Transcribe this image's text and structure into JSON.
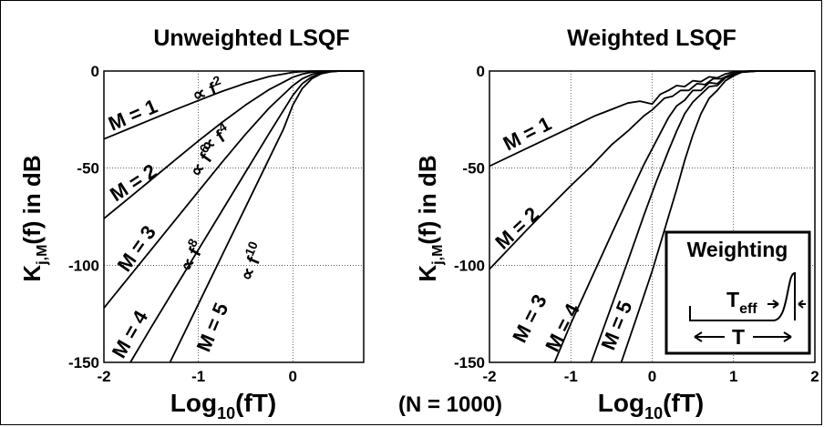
{
  "footer_note": "(N = 1000)",
  "chart_data": [
    {
      "type": "line",
      "title": "Unweighted LSQF",
      "xlabel": "Log",
      "xlabel_sub": "10",
      "xlabel_tail": "(fT)",
      "ylabel": "K",
      "ylabel_sub": "j,M",
      "ylabel_tail": "(f) in dB",
      "xlim": [
        -2,
        0.75
      ],
      "ylim": [
        -150,
        0
      ],
      "xticks": [
        "-2",
        "-1",
        "0"
      ],
      "yticks": [
        "0",
        "-50",
        "-100",
        "-150"
      ],
      "grid": true,
      "series": [
        {
          "name": "M = 1",
          "slope_label": "∝ f",
          "slope_power": "2",
          "x": [
            -2,
            -1.75,
            -1.5,
            -1.25,
            -1,
            -0.75,
            -0.5,
            -0.25,
            0,
            0.1,
            0.2,
            0.3,
            0.5,
            0.75
          ],
          "y": [
            -35,
            -30,
            -25,
            -20,
            -15.2,
            -10.5,
            -6.3,
            -2.8,
            -0.7,
            -0.3,
            -0.1,
            0,
            0,
            0
          ]
        },
        {
          "name": "M = 2",
          "slope_label": "∝ f",
          "slope_power": "4",
          "x": [
            -2,
            -1.75,
            -1.5,
            -1.25,
            -1,
            -0.75,
            -0.5,
            -0.25,
            0,
            0.1,
            0.2,
            0.3,
            0.5,
            0.75
          ],
          "y": [
            -76,
            -66,
            -56,
            -46,
            -36,
            -26.5,
            -17.5,
            -9.5,
            -3.2,
            -1.6,
            -0.6,
            -0.2,
            0,
            0
          ]
        },
        {
          "name": "M = 3",
          "slope_label": "∝ f",
          "slope_power": "6",
          "x": [
            -2,
            -1.75,
            -1.5,
            -1.25,
            -1,
            -0.75,
            -0.5,
            -0.25,
            0,
            0.1,
            0.2,
            0.3,
            0.4,
            0.5,
            0.75
          ],
          "y": [
            -122,
            -107,
            -92,
            -77,
            -62,
            -47,
            -32.5,
            -19,
            -7.5,
            -4,
            -1.8,
            -0.6,
            -0.2,
            0,
            0
          ]
        },
        {
          "name": "M = 4",
          "slope_label": "∝ f",
          "slope_power": "8",
          "x": [
            -1.72,
            -1.5,
            -1.25,
            -1,
            -0.75,
            -0.5,
            -0.25,
            0,
            0.1,
            0.2,
            0.3,
            0.4,
            0.5,
            0.75
          ],
          "y": [
            -150,
            -132,
            -112,
            -92,
            -72,
            -52,
            -32,
            -12.5,
            -6.5,
            -3,
            -1.1,
            -0.3,
            0,
            0
          ]
        },
        {
          "name": "M = 5",
          "slope_label": "∝ f",
          "slope_power": "10",
          "x": [
            -1.3,
            -1.1,
            -0.9,
            -0.7,
            -0.5,
            -0.3,
            -0.1,
            0,
            0.1,
            0.2,
            0.3,
            0.4,
            0.5,
            0.75
          ],
          "y": [
            -150,
            -130,
            -110,
            -90,
            -70,
            -50,
            -30,
            -17.5,
            -9,
            -4,
            -1.4,
            -0.4,
            0,
            0
          ]
        }
      ]
    },
    {
      "type": "line",
      "title": "Weighted LSQF",
      "xlabel": "Log",
      "xlabel_sub": "10",
      "xlabel_tail": "(fT)",
      "ylabel": "K",
      "ylabel_sub": "j,M",
      "ylabel_tail": "(f) in dB",
      "xlim": [
        -2,
        2
      ],
      "ylim": [
        -150,
        0
      ],
      "xticks": [
        "-2",
        "-1",
        "0",
        "1",
        "2"
      ],
      "yticks": [
        "0",
        "-50",
        "-100",
        "-150"
      ],
      "grid": true,
      "inset": {
        "title": "Weighting",
        "teff_label": "T",
        "teff_sub": "eff",
        "t_label": "T"
      },
      "series": [
        {
          "name": "M = 1",
          "x": [
            -2,
            -1.5,
            -1,
            -0.7,
            -0.45,
            -0.3,
            -0.15,
            0,
            0.1,
            0.2,
            0.3,
            0.4,
            0.5,
            0.6,
            0.7,
            0.8,
            0.9,
            1.0,
            1.2,
            1.5,
            2.0
          ],
          "y": [
            -49,
            -39,
            -29,
            -23,
            -19,
            -16.5,
            -15.5,
            -17,
            -12,
            -10,
            -7.5,
            -8,
            -5,
            -5.5,
            -3,
            -3.5,
            -1.5,
            -0.5,
            0,
            0,
            0
          ]
        },
        {
          "name": "M = 2",
          "x": [
            -2,
            -1.5,
            -1,
            -0.75,
            -0.5,
            -0.3,
            -0.1,
            0,
            0.15,
            0.25,
            0.35,
            0.45,
            0.55,
            0.65,
            0.75,
            0.85,
            0.95,
            1.05,
            1.2,
            1.5,
            2.0
          ],
          "y": [
            -102,
            -80,
            -59,
            -49,
            -38,
            -31,
            -23,
            -20,
            -14,
            -13,
            -10,
            -10,
            -6.5,
            -7,
            -4,
            -4,
            -2,
            -0.6,
            0,
            0,
            0
          ]
        },
        {
          "name": "M = 3",
          "x": [
            -1.2,
            -1,
            -0.75,
            -0.5,
            -0.3,
            -0.1,
            0.05,
            0.2,
            0.3,
            0.4,
            0.5,
            0.6,
            0.7,
            0.8,
            0.9,
            1.0,
            1.1,
            1.3,
            1.5,
            2.0
          ],
          "y": [
            -150,
            -130,
            -107,
            -84,
            -66,
            -48,
            -36,
            -24,
            -18,
            -15,
            -10,
            -10,
            -6,
            -6.5,
            -3,
            -2,
            -0.5,
            0,
            0,
            0
          ]
        },
        {
          "name": "M = 4",
          "x": [
            -0.75,
            -0.5,
            -0.3,
            -0.1,
            0.05,
            0.2,
            0.3,
            0.4,
            0.5,
            0.6,
            0.7,
            0.8,
            0.9,
            1.0,
            1.1,
            1.3,
            1.5,
            2.0
          ],
          "y": [
            -150,
            -121,
            -98,
            -74,
            -57,
            -41,
            -31,
            -22,
            -16,
            -12,
            -8,
            -7.5,
            -3.5,
            -2.2,
            -0.5,
            0,
            0,
            0
          ]
        },
        {
          "name": "M = 5",
          "x": [
            -0.38,
            -0.2,
            0,
            0.15,
            0.3,
            0.4,
            0.5,
            0.6,
            0.7,
            0.8,
            0.9,
            1.0,
            1.1,
            1.3,
            1.5,
            2.0
          ],
          "y": [
            -150,
            -128,
            -103,
            -82,
            -61,
            -46,
            -33,
            -22,
            -14,
            -10,
            -5,
            -2.5,
            -0.6,
            0,
            0,
            0
          ]
        }
      ]
    }
  ]
}
